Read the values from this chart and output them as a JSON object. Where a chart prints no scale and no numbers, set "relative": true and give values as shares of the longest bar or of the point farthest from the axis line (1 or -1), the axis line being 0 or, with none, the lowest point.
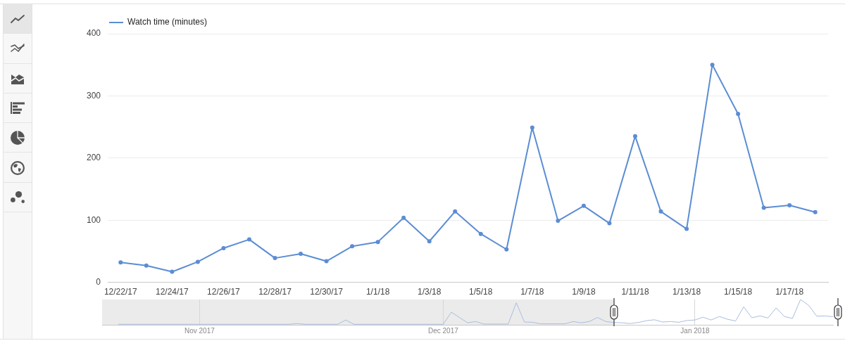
{
  "chart_data": [
    {
      "type": "line",
      "categories": [
        "12/22/17",
        null,
        "12/24/17",
        null,
        "12/26/17",
        null,
        "12/28/17",
        null,
        "12/30/17",
        null,
        "1/1/18",
        null,
        "1/3/18",
        null,
        "1/5/18",
        null,
        "1/7/18",
        null,
        "1/9/18",
        null,
        "1/11/18",
        null,
        "1/13/18",
        null,
        "1/15/18",
        null,
        "1/17/18",
        null
      ],
      "series": [
        {
          "name": "Watch time (minutes)",
          "color": "#5b8dd3",
          "values": [
            32,
            27,
            17,
            33,
            55,
            69,
            39,
            46,
            34,
            58,
            65,
            104,
            66,
            114,
            78,
            53,
            249,
            99,
            123,
            95,
            235,
            114,
            86,
            350,
            271,
            120,
            124,
            113
          ]
        }
      ],
      "ylim": [
        0,
        400
      ],
      "yticks": [
        0,
        100,
        200,
        300,
        400
      ],
      "grid": "y",
      "legend": "top left",
      "marker": "circle"
    },
    {
      "type": "line",
      "relative": true,
      "series": [
        {
          "color": "#a9bde0",
          "x": [
            "2017-10-22",
            "2017-11-12",
            "2017-11-13",
            "2017-11-14",
            "2017-11-18",
            "2017-11-19",
            "2017-11-20",
            "2017-12-01",
            "2017-12-02",
            "2017-12-03",
            "2017-12-04",
            "2017-12-05",
            "2017-12-06",
            "2017-12-09",
            "2017-12-10",
            "2017-12-11",
            "2017-12-12",
            "2017-12-13",
            "2017-12-16",
            "2017-12-17",
            "2017-12-18",
            "2017-12-19",
            "2017-12-20",
            "2017-12-21",
            "2017-12-22",
            "2017-12-23",
            "2017-12-24",
            "2017-12-25",
            "2017-12-26",
            "2017-12-27",
            "2017-12-28",
            "2017-12-29",
            "2017-12-30",
            "2017-12-31",
            "2018-01-01",
            "2018-01-02",
            "2018-01-03",
            "2018-01-04",
            "2018-01-05",
            "2018-01-06",
            "2018-01-07",
            "2018-01-08",
            "2018-01-09",
            "2018-01-10",
            "2018-01-11",
            "2018-01-12",
            "2018-01-13",
            "2018-01-14",
            "2018-01-15",
            "2018-01-16",
            "2018-01-17",
            "2018-01-18"
          ],
          "values": [
            0.02,
            0.02,
            0.05,
            0.02,
            0.02,
            0.19,
            0.02,
            0.02,
            0.5,
            0.29,
            0.08,
            0.13,
            0.03,
            0.03,
            0.87,
            0.11,
            0.1,
            0.04,
            0.04,
            0.13,
            0.08,
            0.13,
            0.29,
            0.13,
            0.09,
            0.08,
            0.05,
            0.09,
            0.16,
            0.2,
            0.11,
            0.13,
            0.1,
            0.17,
            0.19,
            0.3,
            0.19,
            0.33,
            0.22,
            0.15,
            0.71,
            0.28,
            0.35,
            0.27,
            0.67,
            0.33,
            0.25,
            1,
            0.77,
            0.34,
            0.35,
            0.32
          ]
        }
      ],
      "xlim": [
        "2017-10-20",
        "2018-01-18"
      ],
      "xticks": [
        {
          "value": "2017-11-01",
          "label": "Nov 2017"
        },
        {
          "value": "2017-12-01",
          "label": "Dec 2017"
        },
        {
          "value": "2018-01-01",
          "label": "Jan 2018"
        }
      ],
      "grid": "x",
      "bands": [
        {
          "axis": "x",
          "from": "2017-10-20",
          "to": "2017-12-22",
          "color": "#ebebeb"
        }
      ]
    }
  ]
}
